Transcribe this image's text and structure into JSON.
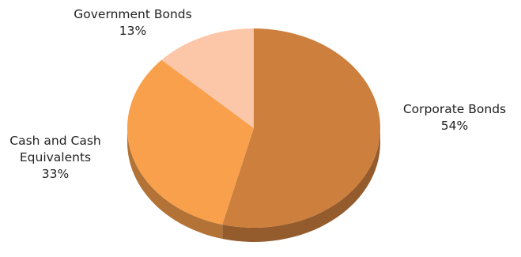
{
  "chart_data": {
    "type": "pie",
    "style": "3d",
    "slices": [
      {
        "label": "Corporate Bonds",
        "value": 54,
        "value_label": "54%",
        "color": "#cd7f3e"
      },
      {
        "label": "Cash and Cash Equivalents",
        "label_lines": [
          "Cash and Cash",
          "Equivalents"
        ],
        "value": 33,
        "value_label": "33%",
        "color": "#f8a04c"
      },
      {
        "label": "Government Bonds",
        "value": 13,
        "value_label": "13%",
        "color": "#fcc6a8"
      }
    ],
    "start": "12 o'clock",
    "direction": "clockwise",
    "legend": "none"
  }
}
